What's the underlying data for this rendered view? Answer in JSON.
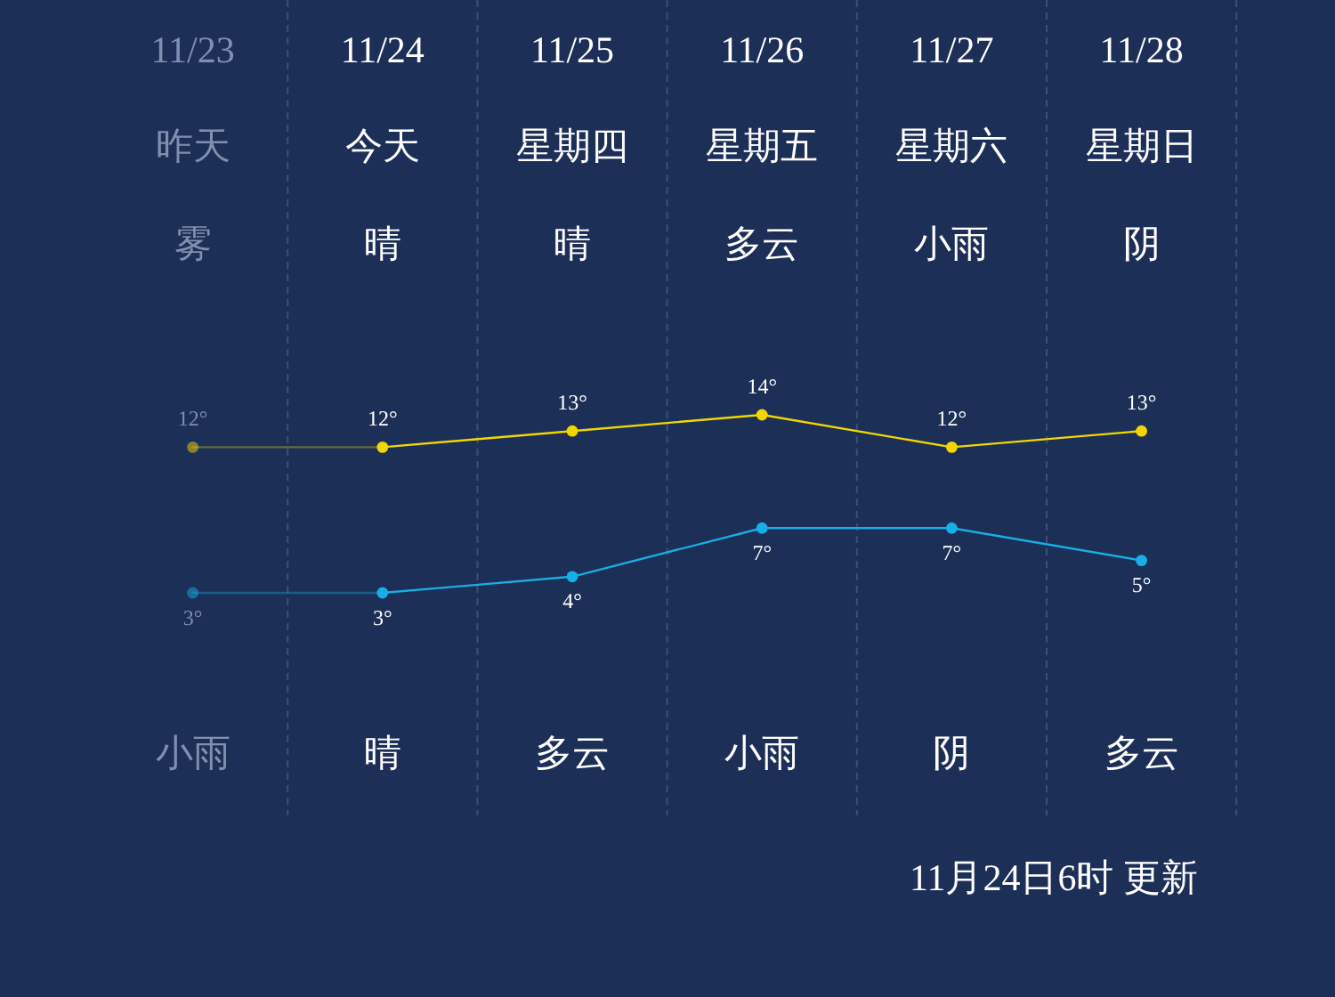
{
  "chart_data": {
    "type": "line",
    "categories": [
      "11/23",
      "11/24",
      "11/25",
      "11/26",
      "11/27",
      "11/28"
    ],
    "series": [
      {
        "color": "#f2d600",
        "values": [
          12,
          12,
          13,
          14,
          12,
          13
        ],
        "value_labels": [
          "12°",
          "12°",
          "13°",
          "14°",
          "12°",
          "13°"
        ]
      },
      {
        "color": "#18aee6",
        "values": [
          3,
          3,
          4,
          7,
          7,
          5
        ],
        "value_labels": [
          "3°",
          "3°",
          "4°",
          "7°",
          "7°",
          "5°"
        ]
      }
    ],
    "annotations": [
      "昨天",
      "今天",
      "星期四",
      "星期五",
      "星期六",
      "星期日",
      "雾",
      "晴",
      "晴",
      "多云",
      "小雨",
      "阴",
      "小雨",
      "晴",
      "多云",
      "小雨",
      "阴",
      "多云",
      "11月24日6时 更新"
    ],
    "marker": "circle",
    "grid": "x"
  }
}
